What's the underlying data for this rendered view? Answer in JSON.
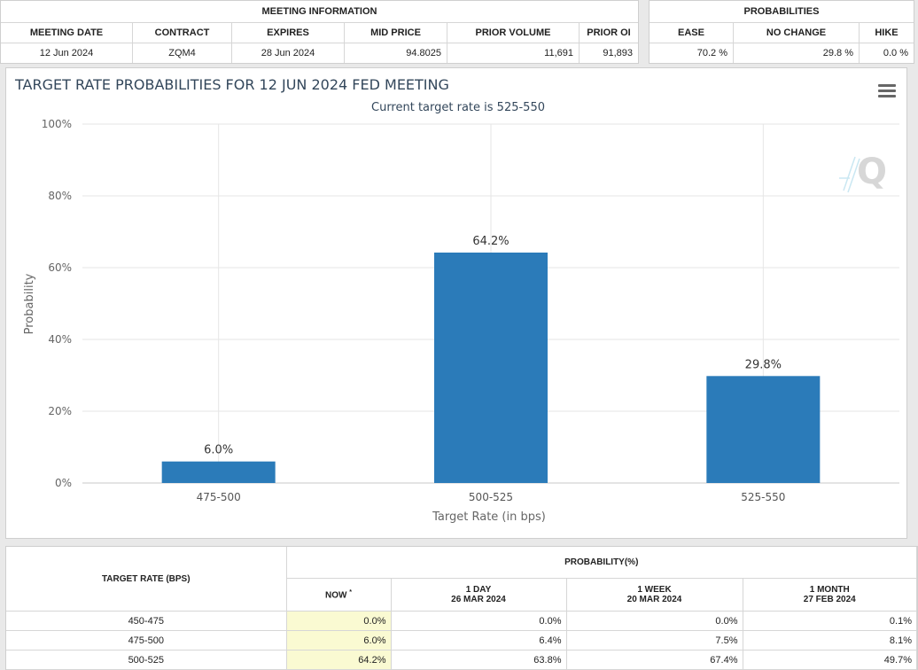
{
  "meeting": {
    "section_title": "MEETING INFORMATION",
    "headers": [
      "MEETING DATE",
      "CONTRACT",
      "EXPIRES",
      "MID PRICE",
      "PRIOR VOLUME",
      "PRIOR OI"
    ],
    "row": [
      "12 Jun 2024",
      "ZQM4",
      "28 Jun 2024",
      "94.8025",
      "11,691",
      "91,893"
    ]
  },
  "probabilities": {
    "section_title": "PROBABILITIES",
    "headers": [
      "EASE",
      "NO CHANGE",
      "HIKE"
    ],
    "row": [
      "70.2 %",
      "29.8 %",
      "0.0 %"
    ]
  },
  "chart_data": {
    "type": "bar",
    "title": "TARGET RATE PROBABILITIES FOR 12 JUN 2024 FED MEETING",
    "subtitle": "Current target rate is 525-550",
    "xlabel": "Target Rate (in bps)",
    "ylabel": "Probability",
    "categories": [
      "475-500",
      "500-525",
      "525-550"
    ],
    "values": [
      6.0,
      64.2,
      29.8
    ],
    "data_labels": [
      "6.0%",
      "64.2%",
      "29.8%"
    ],
    "ylim": [
      0,
      100
    ],
    "yticks": [
      0,
      20,
      40,
      60,
      80,
      100
    ],
    "ytick_labels": [
      "0%",
      "20%",
      "40%",
      "60%",
      "80%",
      "100%"
    ],
    "bar_color": "#2b7bb9",
    "grid": true,
    "legend": "none",
    "watermark": "Q"
  },
  "bottom": {
    "rate_header": "TARGET RATE (BPS)",
    "prob_header": "PROBABILITY(%)",
    "now_label": "NOW",
    "now_mark": "*",
    "cols": [
      {
        "label": "1 DAY",
        "date": "26 MAR 2024"
      },
      {
        "label": "1 WEEK",
        "date": "20 MAR 2024"
      },
      {
        "label": "1 MONTH",
        "date": "27 FEB 2024"
      }
    ],
    "rows": [
      {
        "rate": "450-475",
        "now": "0.0%",
        "day": "0.0%",
        "week": "0.0%",
        "month": "0.1%"
      },
      {
        "rate": "475-500",
        "now": "6.0%",
        "day": "6.4%",
        "week": "7.5%",
        "month": "8.1%"
      },
      {
        "rate": "500-525",
        "now": "64.2%",
        "day": "63.8%",
        "week": "67.4%",
        "month": "49.7%"
      }
    ]
  }
}
